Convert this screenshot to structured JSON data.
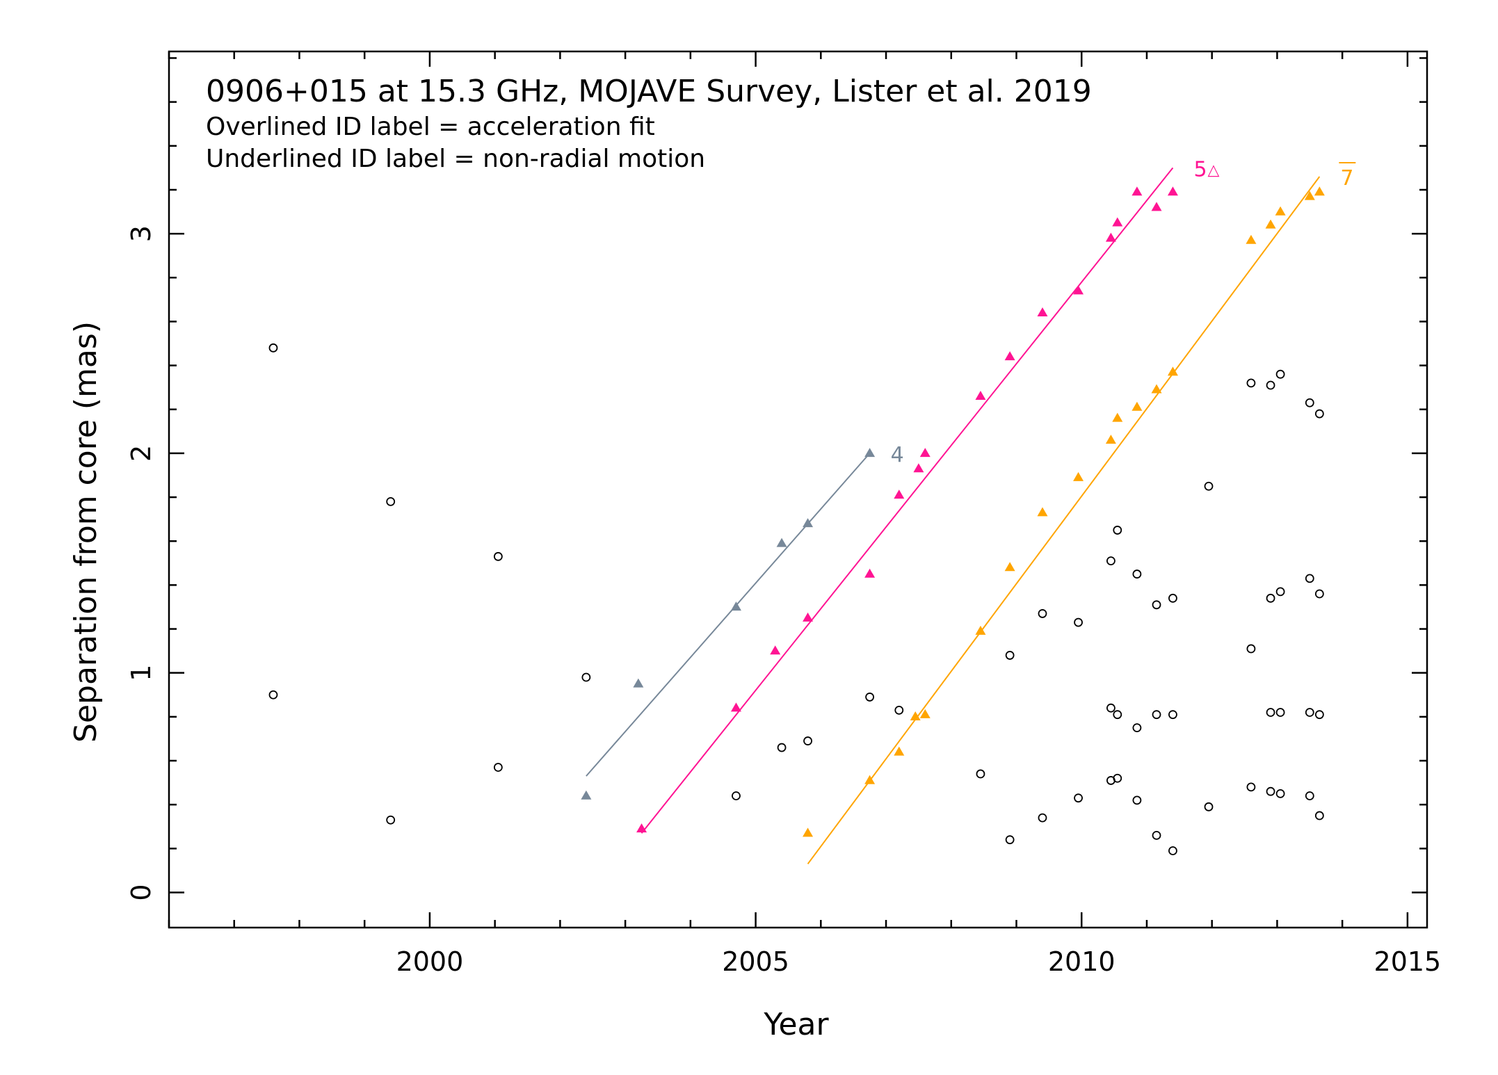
{
  "chart_data": {
    "type": "scatter",
    "title": "0906+015 at 15.3 GHz, MOJAVE Survey, Lister et al. 2019",
    "subtitle_lines": [
      "Overlined ID label = acceleration fit",
      "Underlined ID label = non-radial motion"
    ],
    "xlabel": "Year",
    "ylabel": "Separation from core (mas)",
    "xlim": [
      1996,
      2015.3
    ],
    "ylim": [
      -0.16,
      3.83
    ],
    "xticks": [
      "2000",
      "2005",
      "2010",
      "2015"
    ],
    "xtick_values": [
      2000,
      2005,
      2010,
      2015
    ],
    "yticks": [
      "0",
      "1",
      "2",
      "3"
    ],
    "ytick_values": [
      0,
      1,
      2,
      3
    ],
    "grid": false,
    "colors": {
      "comp4": "#778899",
      "comp5": "#ff1493",
      "comp7": "#ffa500",
      "unassigned": "#000000"
    },
    "series": [
      {
        "name": "4",
        "color": "#778899",
        "marker": "triangle",
        "points": [
          [
            2002.4,
            0.44
          ],
          [
            2003.2,
            0.95
          ],
          [
            2004.7,
            1.3
          ],
          [
            2005.4,
            1.59
          ],
          [
            2005.8,
            1.68
          ],
          [
            2006.75,
            2.0
          ]
        ],
        "fit": [
          [
            2002.4,
            0.53
          ],
          [
            2006.75,
            2.0
          ]
        ],
        "label": "4",
        "label_decoration": "none",
        "label_marker": ""
      },
      {
        "name": "5",
        "color": "#ff1493",
        "marker": "triangle",
        "points": [
          [
            2003.25,
            0.29
          ],
          [
            2004.7,
            0.84
          ],
          [
            2005.3,
            1.1
          ],
          [
            2005.8,
            1.25
          ],
          [
            2006.75,
            1.45
          ],
          [
            2007.2,
            1.81
          ],
          [
            2007.5,
            1.93
          ],
          [
            2007.6,
            2.0
          ],
          [
            2008.45,
            2.26
          ],
          [
            2008.9,
            2.44
          ],
          [
            2009.4,
            2.64
          ],
          [
            2009.95,
            2.74
          ],
          [
            2010.45,
            2.98
          ],
          [
            2010.55,
            3.05
          ],
          [
            2010.85,
            3.19
          ],
          [
            2011.15,
            3.12
          ],
          [
            2011.4,
            3.19
          ]
        ],
        "fit": [
          [
            2003.25,
            0.27
          ],
          [
            2011.4,
            3.3
          ]
        ],
        "label": "5",
        "label_decoration": "none",
        "label_marker": "△"
      },
      {
        "name": "7",
        "color": "#ffa500",
        "marker": "triangle",
        "points": [
          [
            2005.8,
            0.27
          ],
          [
            2006.75,
            0.51
          ],
          [
            2007.2,
            0.64
          ],
          [
            2007.45,
            0.8
          ],
          [
            2007.6,
            0.81
          ],
          [
            2008.45,
            1.19
          ],
          [
            2008.9,
            1.48
          ],
          [
            2009.4,
            1.73
          ],
          [
            2009.95,
            1.89
          ],
          [
            2010.45,
            2.06
          ],
          [
            2010.55,
            2.16
          ],
          [
            2010.85,
            2.21
          ],
          [
            2011.15,
            2.29
          ],
          [
            2011.4,
            2.37
          ],
          [
            2012.6,
            2.97
          ],
          [
            2012.9,
            3.04
          ],
          [
            2013.05,
            3.1
          ],
          [
            2013.5,
            3.17
          ],
          [
            2013.65,
            3.19
          ]
        ],
        "fit": [
          [
            2005.8,
            0.13
          ],
          [
            2013.65,
            3.26
          ]
        ],
        "label": "7",
        "label_decoration": "overline",
        "label_marker": ""
      },
      {
        "name": "",
        "color": "#000000",
        "marker": "open-circle",
        "points": [
          [
            1997.6,
            2.48
          ],
          [
            1997.6,
            0.9
          ],
          [
            1999.4,
            1.78
          ],
          [
            1999.4,
            0.33
          ],
          [
            2001.05,
            1.53
          ],
          [
            2001.05,
            0.57
          ],
          [
            2002.4,
            0.98
          ],
          [
            2004.7,
            0.44
          ],
          [
            2005.4,
            0.66
          ],
          [
            2005.8,
            0.69
          ],
          [
            2006.75,
            0.89
          ],
          [
            2007.2,
            0.83
          ],
          [
            2008.45,
            0.54
          ],
          [
            2008.9,
            1.08
          ],
          [
            2008.9,
            0.24
          ],
          [
            2009.4,
            1.27
          ],
          [
            2009.4,
            0.34
          ],
          [
            2009.95,
            1.23
          ],
          [
            2009.95,
            0.43
          ],
          [
            2010.45,
            1.51
          ],
          [
            2010.45,
            0.84
          ],
          [
            2010.45,
            0.51
          ],
          [
            2010.55,
            1.65
          ],
          [
            2010.55,
            0.81
          ],
          [
            2010.55,
            0.52
          ],
          [
            2010.85,
            1.45
          ],
          [
            2010.85,
            0.75
          ],
          [
            2010.85,
            0.42
          ],
          [
            2011.15,
            1.31
          ],
          [
            2011.15,
            0.81
          ],
          [
            2011.15,
            0.26
          ],
          [
            2011.4,
            1.34
          ],
          [
            2011.4,
            0.81
          ],
          [
            2011.4,
            0.19
          ],
          [
            2011.95,
            1.85
          ],
          [
            2011.95,
            0.39
          ],
          [
            2012.6,
            2.32
          ],
          [
            2012.6,
            1.11
          ],
          [
            2012.6,
            0.48
          ],
          [
            2012.9,
            2.31
          ],
          [
            2012.9,
            1.34
          ],
          [
            2012.9,
            0.82
          ],
          [
            2012.9,
            0.46
          ],
          [
            2013.05,
            2.36
          ],
          [
            2013.05,
            1.37
          ],
          [
            2013.05,
            0.82
          ],
          [
            2013.05,
            0.45
          ],
          [
            2013.5,
            2.23
          ],
          [
            2013.5,
            1.43
          ],
          [
            2013.5,
            0.82
          ],
          [
            2013.5,
            0.44
          ],
          [
            2013.65,
            2.18
          ],
          [
            2013.65,
            1.36
          ],
          [
            2013.65,
            0.81
          ],
          [
            2013.65,
            0.35
          ]
        ]
      }
    ]
  }
}
